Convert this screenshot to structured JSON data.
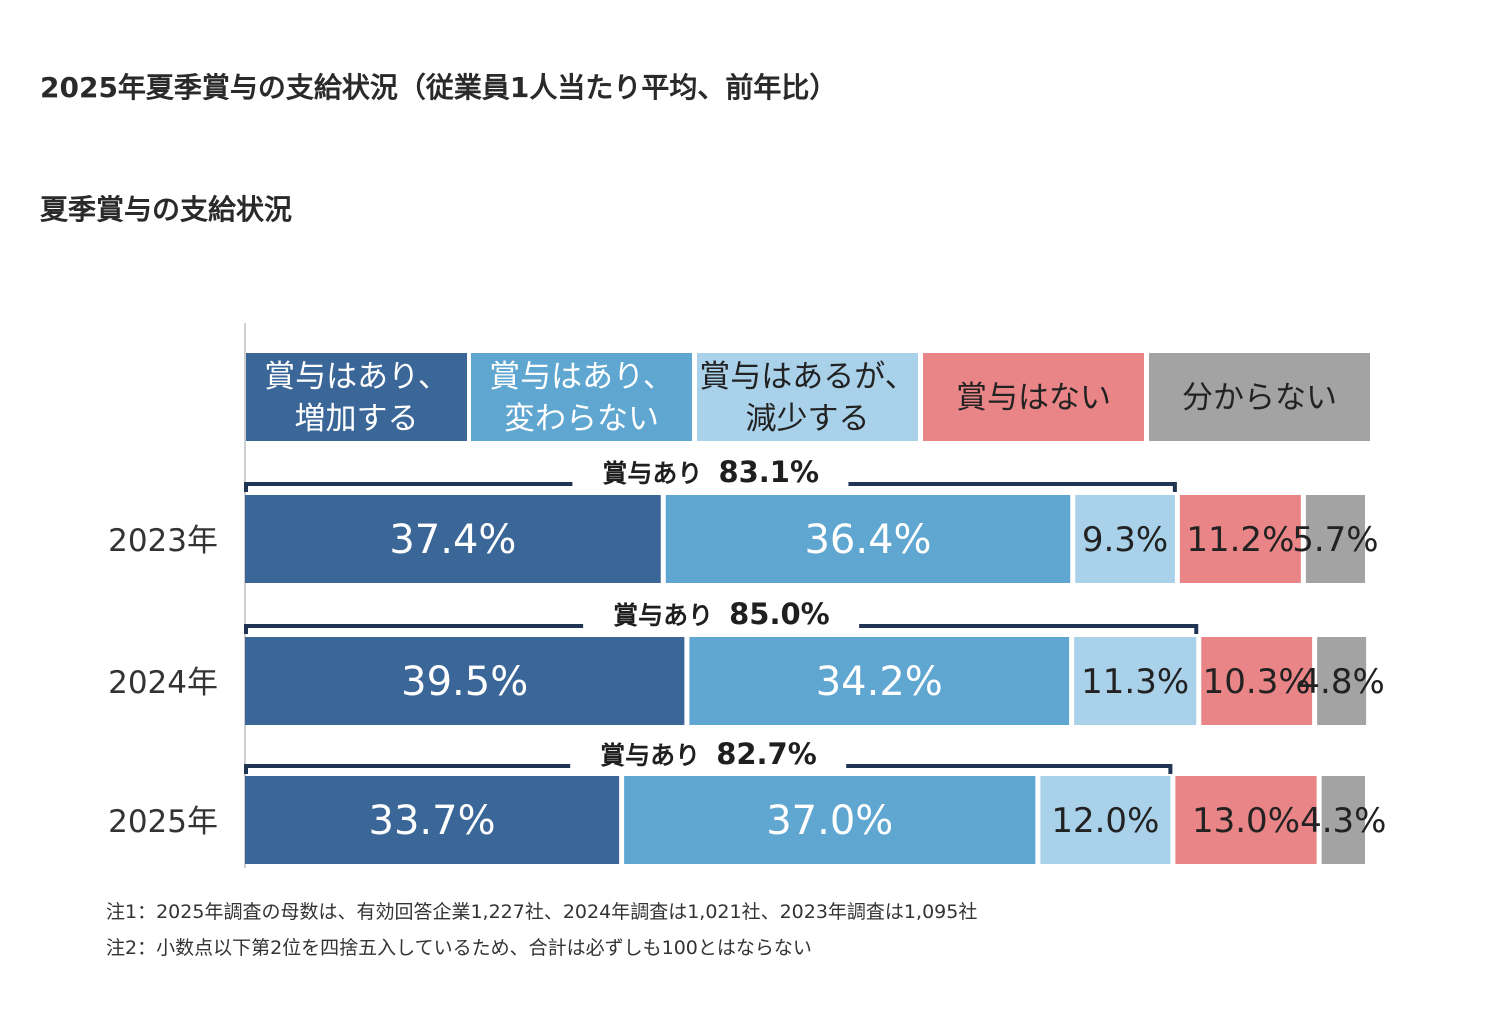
{
  "page": {
    "title": "2025年夏季賞与の支給状況（従業員1人当たり平均、前年比）",
    "section_title": "夏季賞与の支給状況"
  },
  "chart_data": {
    "type": "bar",
    "orientation": "horizontal-stacked-100",
    "categories": [
      "2023年",
      "2024年",
      "2025年"
    ],
    "series": [
      {
        "name": "賞与はあり、増加する",
        "legend_lines": [
          "賞与はあり、",
          "増加する"
        ],
        "color": "#3b6698",
        "label_color": "#ffffff",
        "values": [
          37.4,
          39.5,
          33.7
        ],
        "labels": [
          "37.4%",
          "39.5%",
          "33.7%"
        ]
      },
      {
        "name": "賞与はあり、変わらない",
        "legend_lines": [
          "賞与はあり、",
          "変わらない"
        ],
        "color": "#5fa6d1",
        "label_color": "#ffffff",
        "values": [
          36.4,
          34.2,
          37.0
        ],
        "labels": [
          "36.4%",
          "34.2%",
          "37.0%"
        ]
      },
      {
        "name": "賞与はあるが、減少する",
        "legend_lines": [
          "賞与はあるが、",
          "減少する"
        ],
        "color": "#a9d1ea",
        "label_color": "#222222",
        "values": [
          9.3,
          11.3,
          12.0
        ],
        "labels": [
          "9.3%",
          "11.3%",
          "12.0%"
        ]
      },
      {
        "name": "賞与はない",
        "legend_lines": [
          "賞与はない"
        ],
        "color": "#ea8587",
        "label_color": "#222222",
        "values": [
          11.2,
          10.3,
          13.0
        ],
        "labels": [
          "11.2%",
          "10.3%",
          "13.0%"
        ]
      },
      {
        "name": "分からない",
        "legend_lines": [
          "分からない"
        ],
        "color": "#a3a3a3",
        "label_color": "#222222",
        "values": [
          5.7,
          4.8,
          4.3
        ],
        "labels": [
          "5.7%",
          "4.8%",
          "4.3%"
        ]
      }
    ],
    "brackets": [
      {
        "text": "賞与あり",
        "value": "83.1%"
      },
      {
        "text": "賞与あり",
        "value": "85.0%"
      },
      {
        "text": "賞与あり",
        "value": "82.7%"
      }
    ],
    "xlim": [
      0,
      100
    ],
    "grid": false,
    "legend_position": "top"
  },
  "notes": [
    "注1：2025年調査の母数は、有効回答企業1,227社、2024年調査は1,021社、2023年調査は1,095社",
    "注2：小数点以下第2位を四捨五入しているため、合計は必ずしも100とはならない"
  ]
}
